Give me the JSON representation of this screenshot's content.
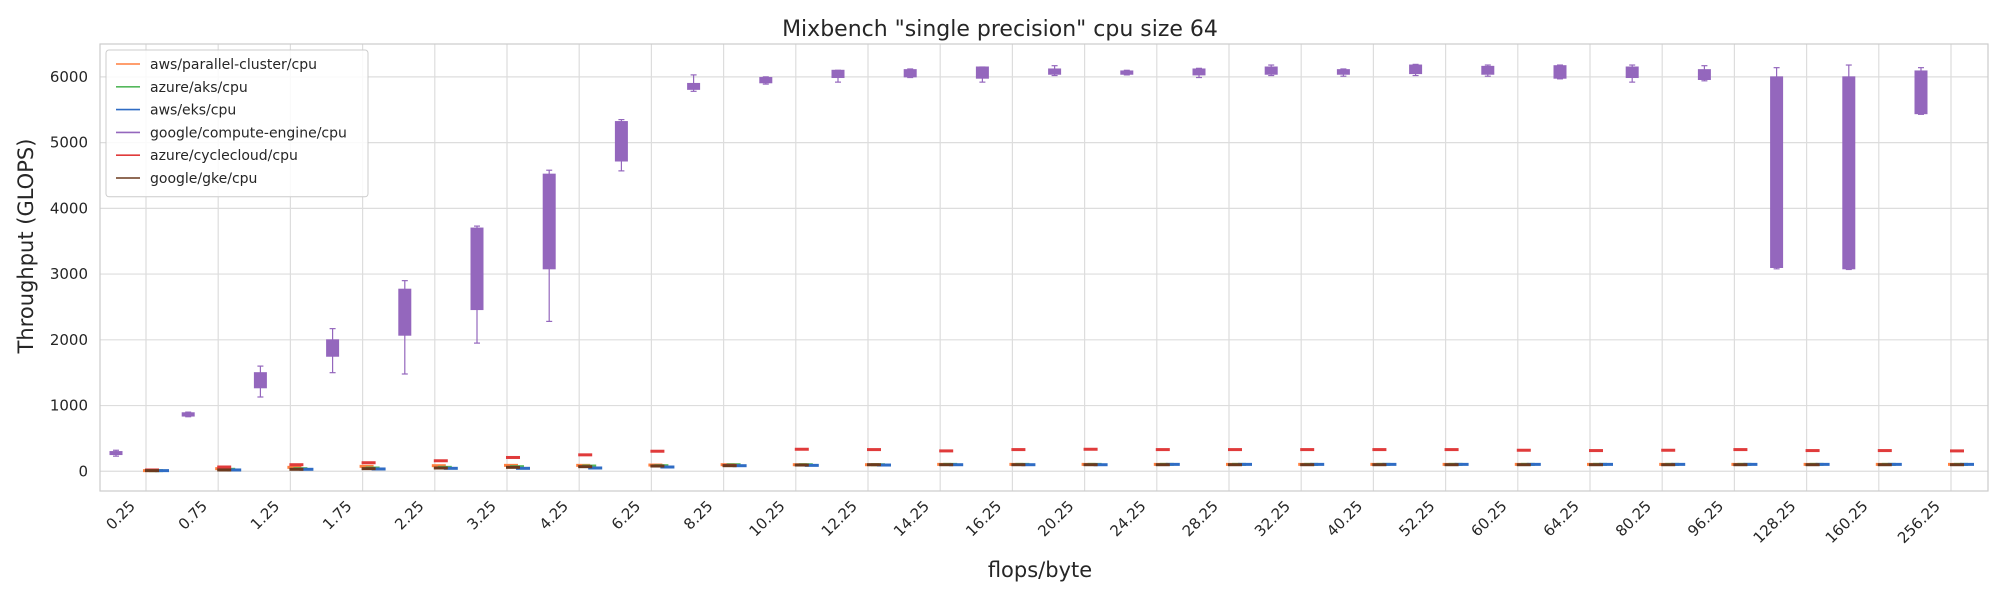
{
  "chart_data": {
    "type": "box",
    "title": "Mixbench \"single precision\" cpu size 64",
    "xlabel": "flops/byte",
    "ylabel": "Throughput (GLOPS)",
    "ylim": [
      -300,
      6500
    ],
    "yticks": [
      0,
      1000,
      2000,
      3000,
      4000,
      5000,
      6000
    ],
    "grid": true,
    "legend_position": "top-left",
    "categories": [
      "0.25",
      "0.75",
      "1.25",
      "1.75",
      "2.25",
      "3.25",
      "4.25",
      "6.25",
      "8.25",
      "10.25",
      "12.25",
      "14.25",
      "16.25",
      "20.25",
      "24.25",
      "28.25",
      "32.25",
      "40.25",
      "52.25",
      "60.25",
      "64.25",
      "80.25",
      "96.25",
      "128.25",
      "160.25",
      "256.25"
    ],
    "series": [
      {
        "name": "aws/parallel-cluster/cpu",
        "color": "#ff7f3f",
        "values": [
          10,
          40,
          60,
          75,
          85,
          90,
          90,
          95,
          100,
          100,
          100,
          105,
          105,
          105,
          105,
          105,
          105,
          105,
          105,
          105,
          105,
          105,
          105,
          105,
          105,
          105
        ]
      },
      {
        "name": "azure/aks/cpu",
        "color": "#55b85c",
        "values": [
          10,
          30,
          40,
          50,
          60,
          70,
          80,
          85,
          100,
          100,
          100,
          105,
          105,
          105,
          105,
          105,
          105,
          105,
          105,
          105,
          105,
          105,
          105,
          105,
          105,
          105
        ]
      },
      {
        "name": "aws/eks/cpu",
        "color": "#2f6cc4",
        "values": [
          10,
          20,
          30,
          35,
          45,
          45,
          50,
          65,
          85,
          90,
          95,
          100,
          100,
          100,
          105,
          105,
          105,
          105,
          105,
          105,
          105,
          105,
          105,
          105,
          105,
          105
        ]
      },
      {
        "name": "google/compute-engine/cpu",
        "color": "#9467bd",
        "boxes": [
          {
            "q1": 260,
            "q3": 300,
            "whislo": 230,
            "whishi": 320
          },
          {
            "q1": 840,
            "q3": 890,
            "whislo": 830,
            "whishi": 900
          },
          {
            "q1": 1270,
            "q3": 1500,
            "whislo": 1130,
            "whishi": 1600
          },
          {
            "q1": 1750,
            "q3": 2000,
            "whislo": 1500,
            "whishi": 2170
          },
          {
            "q1": 2070,
            "q3": 2770,
            "whislo": 1480,
            "whishi": 2900
          },
          {
            "q1": 2460,
            "q3": 3700,
            "whislo": 1950,
            "whishi": 3730
          },
          {
            "q1": 3080,
            "q3": 4520,
            "whislo": 2280,
            "whishi": 4580
          },
          {
            "q1": 4720,
            "q3": 5320,
            "whislo": 4570,
            "whishi": 5350
          },
          {
            "q1": 5810,
            "q3": 5900,
            "whislo": 5780,
            "whishi": 6030
          },
          {
            "q1": 5910,
            "q3": 5990,
            "whislo": 5890,
            "whishi": 6000
          },
          {
            "q1": 5990,
            "q3": 6100,
            "whislo": 5920,
            "whishi": 6100
          },
          {
            "q1": 6000,
            "q3": 6110,
            "whislo": 5990,
            "whishi": 6120
          },
          {
            "q1": 5980,
            "q3": 6150,
            "whislo": 5920,
            "whishi": 6150
          },
          {
            "q1": 6040,
            "q3": 6120,
            "whislo": 6020,
            "whishi": 6170
          },
          {
            "q1": 6040,
            "q3": 6090,
            "whislo": 6030,
            "whishi": 6100
          },
          {
            "q1": 6030,
            "q3": 6120,
            "whislo": 5990,
            "whishi": 6130
          },
          {
            "q1": 6040,
            "q3": 6150,
            "whislo": 6020,
            "whishi": 6180
          },
          {
            "q1": 6040,
            "q3": 6110,
            "whislo": 6010,
            "whishi": 6120
          },
          {
            "q1": 6050,
            "q3": 6180,
            "whislo": 6020,
            "whishi": 6190
          },
          {
            "q1": 6040,
            "q3": 6160,
            "whislo": 6010,
            "whishi": 6180
          },
          {
            "q1": 5980,
            "q3": 6170,
            "whislo": 5970,
            "whishi": 6180
          },
          {
            "q1": 5990,
            "q3": 6150,
            "whislo": 5920,
            "whishi": 6180
          },
          {
            "q1": 5960,
            "q3": 6110,
            "whislo": 5940,
            "whishi": 6170
          },
          {
            "q1": 3100,
            "q3": 6000,
            "whislo": 3080,
            "whishi": 6140
          },
          {
            "q1": 3080,
            "q3": 6000,
            "whislo": 3070,
            "whishi": 6180
          },
          {
            "q1": 5440,
            "q3": 6090,
            "whislo": 5430,
            "whishi": 6140
          }
        ]
      },
      {
        "name": "azure/cyclecloud/cpu",
        "color": "#e03b3b",
        "values": [
          20,
          65,
          100,
          130,
          160,
          210,
          250,
          305,
          90,
          335,
          330,
          310,
          330,
          335,
          330,
          330,
          330,
          330,
          330,
          320,
          315,
          320,
          330,
          315,
          315,
          310
        ]
      },
      {
        "name": "google/gke/cpu",
        "color": "#6b3a1f",
        "values": [
          10,
          20,
          30,
          40,
          50,
          60,
          70,
          80,
          85,
          95,
          100,
          100,
          100,
          100,
          100,
          100,
          100,
          100,
          100,
          100,
          100,
          100,
          100,
          100,
          100,
          100
        ]
      }
    ]
  }
}
